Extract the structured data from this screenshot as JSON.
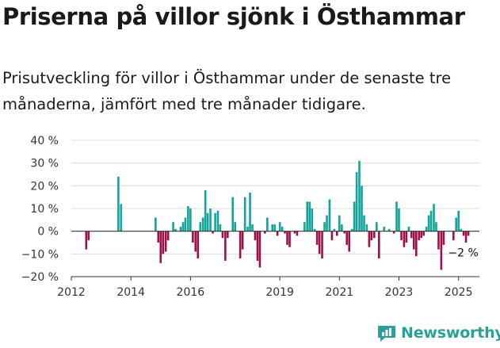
{
  "header": {
    "title": "Priserna på villor sjönk i Östhammar",
    "subtitle": "Prisutveckling för villor i Östhammar under de senaste tre månaderna, jämfört med tre månader tidigare."
  },
  "brand": {
    "name": "Newsworthy",
    "icon": "newsworthy-logo-icon",
    "color": "#2aa198"
  },
  "colors": {
    "positive": "#12a39a",
    "negative": "#9e1048",
    "grid": "#dcdcdc",
    "zero_line": "#333333",
    "text": "#333333"
  },
  "chart_data": {
    "type": "bar",
    "title": "Priserna på villor sjönk i Östhammar",
    "xlabel": "",
    "ylabel": "",
    "ylim": [
      -20,
      40
    ],
    "yticks": [
      40,
      30,
      20,
      10,
      0,
      -10,
      -20
    ],
    "ytick_labels": [
      "40 %",
      "30 %",
      "20 %",
      "10 %",
      "0 %",
      "−10 %",
      "−20 %"
    ],
    "xlim": [
      2012,
      2025.7
    ],
    "xticks": [
      2012,
      2014,
      2016,
      2019,
      2021,
      2023,
      2025
    ],
    "xtick_labels": [
      "2012",
      "2014",
      "2016",
      "2019",
      "2021",
      "2023",
      "2025"
    ],
    "grid": true,
    "annotation": {
      "text": "−2 %",
      "x": 2025.35,
      "y": -2
    },
    "series": [
      {
        "name": "Prisutveckling (%)",
        "unit": "%",
        "points": [
          {
            "x": 2012.5,
            "y": -8
          },
          {
            "x": 2012.58,
            "y": -4
          },
          {
            "x": 2013.58,
            "y": 24
          },
          {
            "x": 2013.67,
            "y": 12
          },
          {
            "x": 2014.83,
            "y": 6
          },
          {
            "x": 2014.92,
            "y": -5
          },
          {
            "x": 2015.0,
            "y": -14
          },
          {
            "x": 2015.08,
            "y": -10
          },
          {
            "x": 2015.17,
            "y": -9
          },
          {
            "x": 2015.25,
            "y": -4
          },
          {
            "x": 2015.42,
            "y": 4
          },
          {
            "x": 2015.5,
            "y": 1
          },
          {
            "x": 2015.67,
            "y": 2
          },
          {
            "x": 2015.75,
            "y": 4
          },
          {
            "x": 2015.83,
            "y": 6
          },
          {
            "x": 2015.92,
            "y": 11
          },
          {
            "x": 2016.0,
            "y": 10
          },
          {
            "x": 2016.08,
            "y": -5
          },
          {
            "x": 2016.17,
            "y": -9
          },
          {
            "x": 2016.25,
            "y": -12
          },
          {
            "x": 2016.33,
            "y": 4
          },
          {
            "x": 2016.42,
            "y": 6
          },
          {
            "x": 2016.5,
            "y": 18
          },
          {
            "x": 2016.58,
            "y": 8
          },
          {
            "x": 2016.67,
            "y": 10
          },
          {
            "x": 2016.75,
            "y": -1
          },
          {
            "x": 2016.83,
            "y": 8
          },
          {
            "x": 2016.92,
            "y": 9
          },
          {
            "x": 2017.0,
            "y": 3
          },
          {
            "x": 2017.08,
            "y": -3
          },
          {
            "x": 2017.17,
            "y": -13
          },
          {
            "x": 2017.25,
            "y": -3
          },
          {
            "x": 2017.42,
            "y": 15
          },
          {
            "x": 2017.5,
            "y": 4
          },
          {
            "x": 2017.67,
            "y": -12
          },
          {
            "x": 2017.75,
            "y": -8
          },
          {
            "x": 2017.83,
            "y": 15
          },
          {
            "x": 2017.92,
            "y": 2
          },
          {
            "x": 2018.0,
            "y": 17
          },
          {
            "x": 2018.08,
            "y": 3
          },
          {
            "x": 2018.17,
            "y": -4
          },
          {
            "x": 2018.25,
            "y": -13
          },
          {
            "x": 2018.33,
            "y": -16
          },
          {
            "x": 2018.5,
            "y": -1
          },
          {
            "x": 2018.58,
            "y": 6
          },
          {
            "x": 2018.75,
            "y": 3
          },
          {
            "x": 2018.83,
            "y": 3
          },
          {
            "x": 2018.92,
            "y": -2
          },
          {
            "x": 2019.0,
            "y": 4
          },
          {
            "x": 2019.08,
            "y": 2
          },
          {
            "x": 2019.17,
            "y": -1
          },
          {
            "x": 2019.25,
            "y": -6
          },
          {
            "x": 2019.33,
            "y": -7
          },
          {
            "x": 2019.5,
            "y": -1
          },
          {
            "x": 2019.58,
            "y": -2
          },
          {
            "x": 2019.83,
            "y": 4
          },
          {
            "x": 2019.92,
            "y": 13
          },
          {
            "x": 2020.0,
            "y": 13
          },
          {
            "x": 2020.08,
            "y": 10
          },
          {
            "x": 2020.17,
            "y": 1
          },
          {
            "x": 2020.25,
            "y": -6
          },
          {
            "x": 2020.33,
            "y": -10
          },
          {
            "x": 2020.42,
            "y": -12
          },
          {
            "x": 2020.5,
            "y": 4
          },
          {
            "x": 2020.58,
            "y": 7
          },
          {
            "x": 2020.67,
            "y": 14
          },
          {
            "x": 2020.75,
            "y": -4
          },
          {
            "x": 2020.83,
            "y": 1
          },
          {
            "x": 2020.92,
            "y": -2
          },
          {
            "x": 2021.0,
            "y": 7
          },
          {
            "x": 2021.08,
            "y": 3
          },
          {
            "x": 2021.17,
            "y": -1
          },
          {
            "x": 2021.25,
            "y": -6
          },
          {
            "x": 2021.33,
            "y": -9
          },
          {
            "x": 2021.42,
            "y": 1
          },
          {
            "x": 2021.5,
            "y": 13
          },
          {
            "x": 2021.58,
            "y": 26
          },
          {
            "x": 2021.67,
            "y": 31
          },
          {
            "x": 2021.75,
            "y": 20
          },
          {
            "x": 2021.83,
            "y": 7
          },
          {
            "x": 2021.92,
            "y": 3
          },
          {
            "x": 2022.0,
            "y": -7
          },
          {
            "x": 2022.08,
            "y": -4
          },
          {
            "x": 2022.17,
            "y": -3
          },
          {
            "x": 2022.25,
            "y": 4
          },
          {
            "x": 2022.33,
            "y": -12
          },
          {
            "x": 2022.5,
            "y": 2
          },
          {
            "x": 2022.67,
            "y": 1
          },
          {
            "x": 2022.83,
            "y": -1
          },
          {
            "x": 2022.92,
            "y": 13
          },
          {
            "x": 2023.0,
            "y": 10
          },
          {
            "x": 2023.08,
            "y": -4
          },
          {
            "x": 2023.17,
            "y": -7
          },
          {
            "x": 2023.25,
            "y": -5
          },
          {
            "x": 2023.33,
            "y": 2
          },
          {
            "x": 2023.42,
            "y": -3
          },
          {
            "x": 2023.5,
            "y": -8
          },
          {
            "x": 2023.58,
            "y": -11
          },
          {
            "x": 2023.67,
            "y": -4
          },
          {
            "x": 2023.75,
            "y": -3
          },
          {
            "x": 2023.83,
            "y": -2
          },
          {
            "x": 2023.92,
            "y": 2
          },
          {
            "x": 2024.0,
            "y": 7
          },
          {
            "x": 2024.08,
            "y": 9
          },
          {
            "x": 2024.17,
            "y": 12
          },
          {
            "x": 2024.25,
            "y": 4
          },
          {
            "x": 2024.33,
            "y": -8
          },
          {
            "x": 2024.42,
            "y": -17
          },
          {
            "x": 2024.5,
            "y": -6
          },
          {
            "x": 2024.83,
            "y": -4
          },
          {
            "x": 2024.92,
            "y": 6
          },
          {
            "x": 2025.0,
            "y": 9
          },
          {
            "x": 2025.08,
            "y": 1
          },
          {
            "x": 2025.17,
            "y": -2
          },
          {
            "x": 2025.25,
            "y": -5
          },
          {
            "x": 2025.33,
            "y": -2
          }
        ]
      }
    ]
  }
}
